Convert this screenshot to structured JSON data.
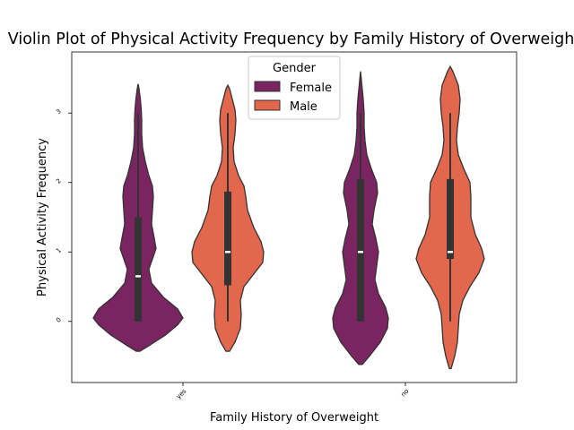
{
  "chart_data": {
    "type": "violin",
    "title": "Violin Plot of Physical Activity Frequency by Family History of Overweight",
    "xlabel": "Family History of Overweight",
    "ylabel": "Physical Activity Frequency",
    "categories": [
      "yes",
      "no"
    ],
    "yticks": [
      "0",
      "1",
      "2",
      "3"
    ],
    "ylim": [
      -0.88,
      3.88
    ],
    "legend": {
      "title": "Gender",
      "placement": "top-center",
      "entries": [
        {
          "label": "Female",
          "color": "#7a2461"
        },
        {
          "label": "Male",
          "color": "#e3674d"
        }
      ]
    },
    "series": [
      {
        "name": "Female",
        "color": "#7a2461",
        "violins": [
          {
            "category": "yes",
            "min": 0,
            "q1": 0,
            "median": 0.65,
            "q3": 1.5,
            "max": 3,
            "profile": [
              [
                -0.43,
                0.02
              ],
              [
                -0.35,
                0.12
              ],
              [
                -0.2,
                0.3
              ],
              [
                -0.05,
                0.44
              ],
              [
                0.05,
                0.5
              ],
              [
                0.18,
                0.44
              ],
              [
                0.35,
                0.28
              ],
              [
                0.55,
                0.15
              ],
              [
                0.75,
                0.12
              ],
              [
                0.9,
                0.16
              ],
              [
                1.05,
                0.2
              ],
              [
                1.2,
                0.18
              ],
              [
                1.4,
                0.15
              ],
              [
                1.6,
                0.16
              ],
              [
                1.8,
                0.17
              ],
              [
                1.95,
                0.16
              ],
              [
                2.1,
                0.12
              ],
              [
                2.3,
                0.08
              ],
              [
                2.5,
                0.05
              ],
              [
                2.7,
                0.04
              ],
              [
                2.9,
                0.04
              ],
              [
                3.05,
                0.035
              ],
              [
                3.2,
                0.025
              ],
              [
                3.35,
                0.01
              ],
              [
                3.42,
                0.0
              ]
            ]
          },
          {
            "category": "no",
            "min": 0,
            "q1": 0,
            "median": 1,
            "q3": 2.05,
            "max": 3,
            "profile": [
              [
                -0.62,
                0.02
              ],
              [
                -0.5,
                0.1
              ],
              [
                -0.3,
                0.22
              ],
              [
                -0.1,
                0.3
              ],
              [
                0.05,
                0.31
              ],
              [
                0.2,
                0.28
              ],
              [
                0.4,
                0.2
              ],
              [
                0.6,
                0.16
              ],
              [
                0.8,
                0.18
              ],
              [
                1.0,
                0.2
              ],
              [
                1.2,
                0.17
              ],
              [
                1.4,
                0.13
              ],
              [
                1.6,
                0.15
              ],
              [
                1.85,
                0.19
              ],
              [
                2.0,
                0.18
              ],
              [
                2.2,
                0.12
              ],
              [
                2.4,
                0.07
              ],
              [
                2.6,
                0.05
              ],
              [
                2.8,
                0.04
              ],
              [
                3.0,
                0.04
              ],
              [
                3.2,
                0.03
              ],
              [
                3.4,
                0.015
              ],
              [
                3.6,
                0.0
              ]
            ]
          }
        ]
      },
      {
        "name": "Male",
        "color": "#e3674d",
        "violins": [
          {
            "category": "yes",
            "min": 0,
            "q1": 0.52,
            "median": 1,
            "q3": 1.87,
            "max": 3,
            "profile": [
              [
                -0.43,
                0.02
              ],
              [
                -0.3,
                0.08
              ],
              [
                -0.1,
                0.14
              ],
              [
                0.1,
                0.15
              ],
              [
                0.3,
                0.14
              ],
              [
                0.5,
                0.18
              ],
              [
                0.7,
                0.3
              ],
              [
                0.85,
                0.39
              ],
              [
                1.0,
                0.4
              ],
              [
                1.15,
                0.37
              ],
              [
                1.35,
                0.29
              ],
              [
                1.6,
                0.22
              ],
              [
                1.8,
                0.2
              ],
              [
                1.95,
                0.18
              ],
              [
                2.1,
                0.12
              ],
              [
                2.3,
                0.07
              ],
              [
                2.5,
                0.06
              ],
              [
                2.7,
                0.08
              ],
              [
                2.9,
                0.09
              ],
              [
                3.05,
                0.08
              ],
              [
                3.2,
                0.05
              ],
              [
                3.35,
                0.02
              ],
              [
                3.4,
                0.0
              ]
            ]
          },
          {
            "category": "no",
            "min": 0,
            "q1": 0.9,
            "median": 1,
            "q3": 2.05,
            "max": 3,
            "profile": [
              [
                -0.68,
                0.01
              ],
              [
                -0.5,
                0.05
              ],
              [
                -0.3,
                0.08
              ],
              [
                -0.1,
                0.09
              ],
              [
                0.1,
                0.1
              ],
              [
                0.3,
                0.14
              ],
              [
                0.5,
                0.22
              ],
              [
                0.7,
                0.32
              ],
              [
                0.9,
                0.38
              ],
              [
                1.05,
                0.35
              ],
              [
                1.25,
                0.28
              ],
              [
                1.5,
                0.23
              ],
              [
                1.8,
                0.23
              ],
              [
                2.0,
                0.22
              ],
              [
                2.2,
                0.15
              ],
              [
                2.4,
                0.09
              ],
              [
                2.6,
                0.07
              ],
              [
                2.8,
                0.08
              ],
              [
                3.0,
                0.1
              ],
              [
                3.2,
                0.11
              ],
              [
                3.4,
                0.09
              ],
              [
                3.6,
                0.03
              ],
              [
                3.67,
                0.0
              ]
            ]
          }
        ]
      }
    ],
    "grid": false
  }
}
